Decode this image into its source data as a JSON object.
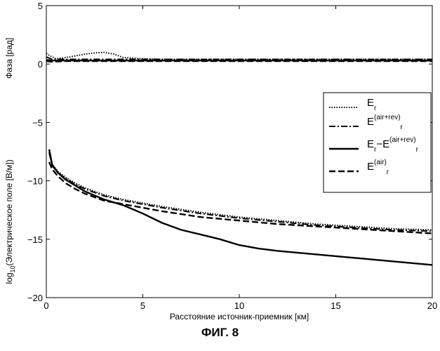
{
  "figure": {
    "caption": "ФИГ. 8"
  },
  "chart_data": {
    "type": "line",
    "xlabel": "Расстояние источник-приемник [км]",
    "xlim": [
      0,
      20
    ],
    "ylim": [
      -20,
      5
    ],
    "x_ticks": [
      0,
      5,
      10,
      15,
      20
    ],
    "y_ticks": [
      5,
      0,
      -5,
      -10,
      -15,
      -20
    ],
    "phase_axis_label": "Фаза [рад]",
    "amplitude_axis_label": "log10(Электрическое поле [В/м])",
    "amplitude_axis_label_parts": {
      "prefix": "log",
      "subscript": "10",
      "rest": "(Электрическое поле [В/м])"
    },
    "grid": false,
    "legend_position": "right",
    "legend": [
      {
        "style": "dotted",
        "base": "E",
        "sub": "r",
        "sup": ""
      },
      {
        "style": "dashdot",
        "base": "E",
        "sub": "r",
        "sup": "(air+rev)"
      },
      {
        "style": "solid",
        "base": "E",
        "sub": "r",
        "sup": "",
        "minus": "−E",
        "sub2": "r",
        "sup2": "(air+rev)"
      },
      {
        "style": "dashed",
        "base": "E",
        "sub": "r",
        "sup": "(air)"
      }
    ],
    "series": [
      {
        "group": "phase",
        "style": "dotted",
        "x": [
          0,
          0.2,
          0.5,
          1,
          1.5,
          2,
          2.5,
          3,
          3.5,
          4,
          5,
          6,
          8,
          10,
          12,
          14,
          16,
          18,
          20
        ],
        "y": [
          0.9,
          0.7,
          0.45,
          0.55,
          0.7,
          0.85,
          0.95,
          1.0,
          0.85,
          0.55,
          0.45,
          0.4,
          0.4,
          0.4,
          0.4,
          0.4,
          0.4,
          0.4,
          0.4
        ]
      },
      {
        "group": "phase",
        "style": "dashdot",
        "x": [
          0,
          0.3,
          1,
          2,
          4,
          6,
          8,
          10,
          12,
          14,
          16,
          18,
          20
        ],
        "y": [
          0.6,
          0.4,
          0.4,
          0.4,
          0.4,
          0.4,
          0.4,
          0.4,
          0.4,
          0.4,
          0.4,
          0.4,
          0.4
        ]
      },
      {
        "group": "phase",
        "style": "solid",
        "x": [
          0,
          0.3,
          1,
          2,
          4,
          6,
          8,
          10,
          12,
          14,
          16,
          18,
          20
        ],
        "y": [
          0.35,
          0.3,
          0.3,
          0.3,
          0.3,
          0.3,
          0.3,
          0.3,
          0.3,
          0.3,
          0.3,
          0.3,
          0.3
        ]
      },
      {
        "group": "phase",
        "style": "dashed",
        "x": [
          0,
          0.3,
          1,
          2,
          4,
          6,
          8,
          10,
          12,
          14,
          16,
          18,
          20
        ],
        "y": [
          0.25,
          0.2,
          0.25,
          0.25,
          0.25,
          0.25,
          0.25,
          0.25,
          0.25,
          0.25,
          0.25,
          0.25,
          0.25
        ]
      },
      {
        "group": "amplitude",
        "style": "dotted",
        "x": [
          0.15,
          0.3,
          0.6,
          1,
          1.5,
          2,
          3,
          4,
          5,
          6,
          8,
          10,
          12,
          14,
          16,
          18,
          20
        ],
        "y": [
          -7.5,
          -8.6,
          -9.2,
          -9.7,
          -10.2,
          -10.6,
          -11.2,
          -11.6,
          -11.9,
          -12.2,
          -12.7,
          -13.1,
          -13.4,
          -13.7,
          -13.9,
          -14.1,
          -14.2
        ]
      },
      {
        "group": "amplitude",
        "style": "dashdot",
        "x": [
          0.15,
          0.3,
          0.6,
          1,
          1.5,
          2,
          3,
          4,
          5,
          6,
          8,
          10,
          12,
          14,
          16,
          18,
          20
        ],
        "y": [
          -7.6,
          -8.7,
          -9.3,
          -9.8,
          -10.3,
          -10.7,
          -11.3,
          -11.7,
          -12.0,
          -12.3,
          -12.8,
          -13.2,
          -13.5,
          -13.8,
          -14.0,
          -14.2,
          -14.3
        ]
      },
      {
        "group": "amplitude",
        "style": "solid",
        "x": [
          0.15,
          0.3,
          0.6,
          1,
          1.5,
          2,
          3,
          4,
          5,
          6,
          7,
          8,
          9,
          10,
          11,
          12,
          14,
          16,
          18,
          20
        ],
        "y": [
          -7.3,
          -8.6,
          -9.3,
          -9.9,
          -10.4,
          -10.9,
          -11.6,
          -12.1,
          -12.8,
          -13.6,
          -14.2,
          -14.6,
          -15.0,
          -15.5,
          -15.8,
          -16.0,
          -16.3,
          -16.6,
          -16.9,
          -17.2
        ]
      },
      {
        "group": "amplitude",
        "style": "dashed",
        "x": [
          0.15,
          0.3,
          0.6,
          1,
          1.5,
          2,
          3,
          4,
          5,
          6,
          8,
          10,
          12,
          14,
          16,
          18,
          20
        ],
        "y": [
          -8.4,
          -9.0,
          -9.6,
          -10.2,
          -10.7,
          -11.1,
          -11.7,
          -12.0,
          -12.3,
          -12.6,
          -13.1,
          -13.4,
          -13.7,
          -13.9,
          -14.1,
          -14.3,
          -14.5
        ]
      }
    ]
  }
}
